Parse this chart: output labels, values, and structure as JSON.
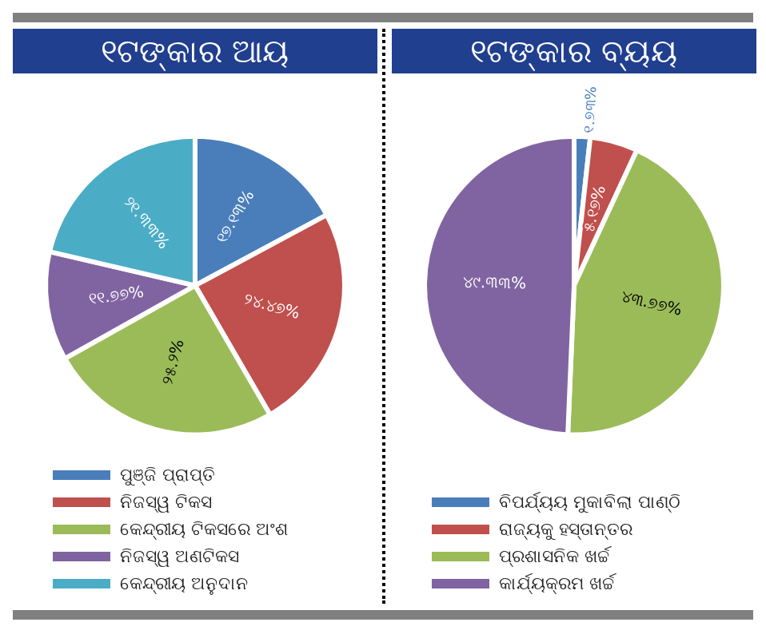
{
  "chart_data": [
    {
      "type": "pie",
      "title": "୧ଟଙ୍କାର ଆୟ",
      "categories": [
        "ପୁଞ୍ଜି ପ୍ରାପ୍ତି",
        "ନିଜସ୍ୱ ଟିକସ",
        "କେନ୍ଦ୍ରୀୟ ଟିକସରେ ଅଂଶ",
        "ନିଜସ୍ୱ ଅଣଟିକସ",
        "କେନ୍ଦ୍ରୀୟ ଅନୁଦାନ"
      ],
      "values": [
        17.13,
        24.47,
        25.2,
        11.77,
        21.33
      ],
      "value_labels": [
        "୧୭.୧୩%",
        "୨୪.୪୭%",
        "୨୫.୨%",
        "୧୧.୭୭%",
        "୨୧.୩୩%"
      ],
      "colors": [
        "#4a7ebb",
        "#c0504d",
        "#9bbb59",
        "#8064a2",
        "#4bacc6"
      ],
      "legend": "bottom"
    },
    {
      "type": "pie",
      "title": "୧ଟଙ୍କାର ବ୍ୟୟ",
      "categories": [
        "ବିପର୍ଯ୍ୟୟ ମୁକାବିଲା ପାଣ୍ଠି",
        "ରାଜ୍ୟକୁ ହସ୍ତାନ୍ତର",
        "ପ୍ରଶାସନିକ ଖର୍ଚ୍ଚ",
        "କାର୍ଯ୍ୟକ୍ରମ ଖର୍ଚ୍ଚ"
      ],
      "values": [
        1.73,
        5.17,
        43.77,
        49.33
      ],
      "value_labels": [
        "୧.୭୩%",
        "୫.୧୭%",
        "୪୩.୭୭%",
        "୪୯.୩୩%"
      ],
      "colors": [
        "#4a7ebb",
        "#c0504d",
        "#9bbb59",
        "#8064a2"
      ],
      "legend": "bottom"
    }
  ]
}
